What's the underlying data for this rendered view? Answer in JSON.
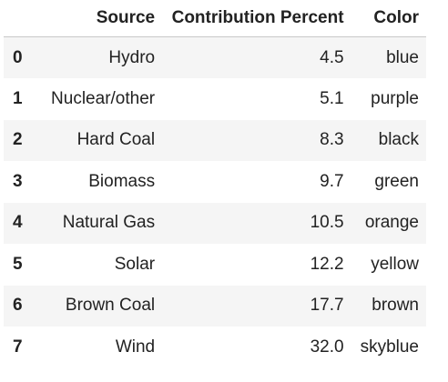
{
  "chart_data": {
    "type": "table",
    "columns": [
      "",
      "Source",
      "Contribution Percent",
      "Color"
    ],
    "rows": [
      {
        "index": "0",
        "source": "Hydro",
        "percent": "4.5",
        "color": "blue"
      },
      {
        "index": "1",
        "source": "Nuclear/other",
        "percent": "5.1",
        "color": "purple"
      },
      {
        "index": "2",
        "source": "Hard Coal",
        "percent": "8.3",
        "color": "black"
      },
      {
        "index": "3",
        "source": "Biomass",
        "percent": "9.7",
        "color": "green"
      },
      {
        "index": "4",
        "source": "Natural Gas",
        "percent": "10.5",
        "color": "orange"
      },
      {
        "index": "5",
        "source": "Solar",
        "percent": "12.2",
        "color": "yellow"
      },
      {
        "index": "6",
        "source": "Brown Coal",
        "percent": "17.7",
        "color": "brown"
      },
      {
        "index": "7",
        "source": "Wind",
        "percent": "32.0",
        "color": "skyblue"
      }
    ]
  }
}
